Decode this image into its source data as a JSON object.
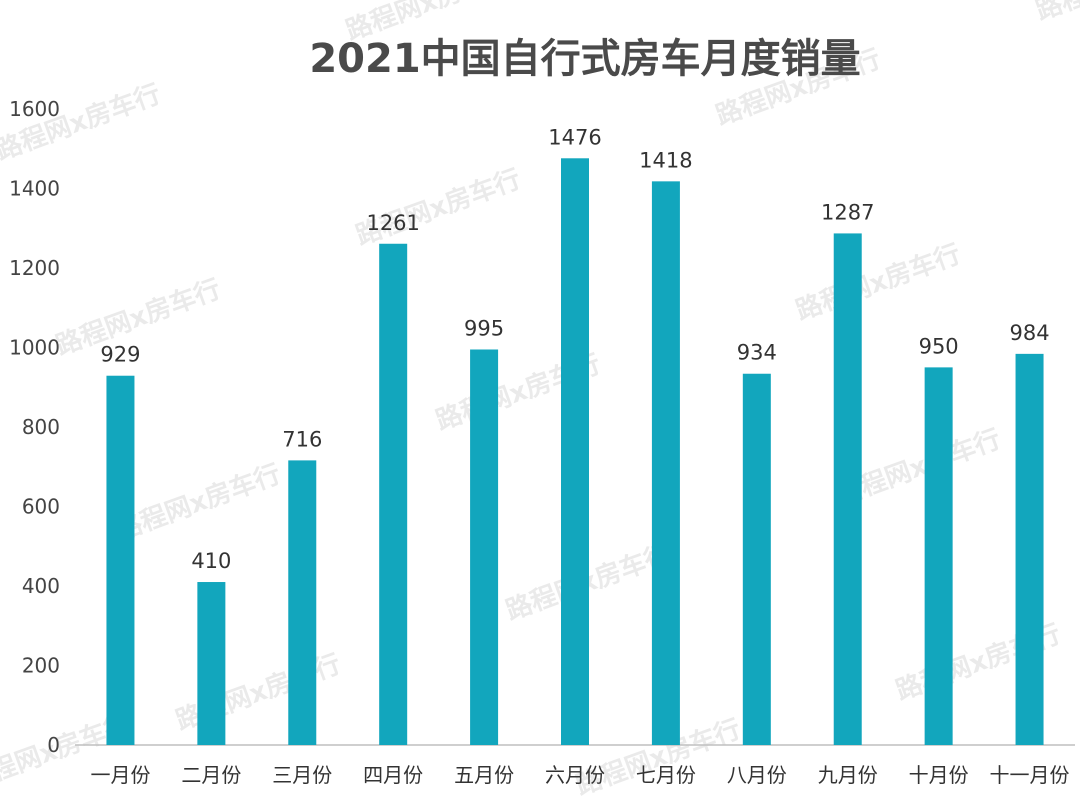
{
  "watermark": "路程网x房车行",
  "chart_data": {
    "type": "bar",
    "title": "2021中国自行式房车月度销量",
    "categories": [
      "一月份",
      "二月份",
      "三月份",
      "四月份",
      "五月份",
      "六月份",
      "七月份",
      "八月份",
      "九月份",
      "十月份",
      "十一月份"
    ],
    "values": [
      929,
      410,
      716,
      1261,
      995,
      1476,
      1418,
      934,
      1287,
      950,
      984
    ],
    "ylim": [
      0,
      1600
    ],
    "yticks": [
      0,
      200,
      400,
      600,
      800,
      1000,
      1200,
      1400,
      1600
    ],
    "grid": false,
    "bar_color": "#12a6bd"
  }
}
